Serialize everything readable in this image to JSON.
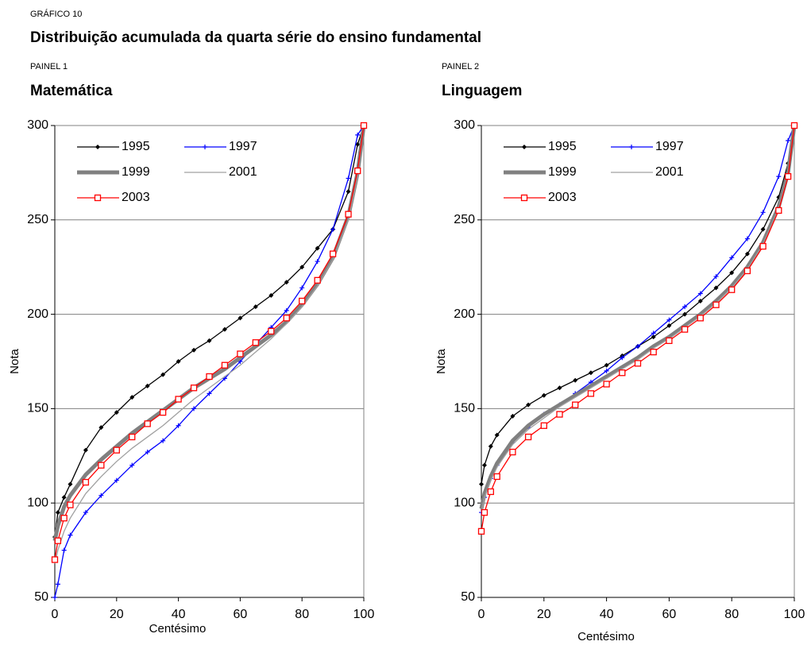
{
  "header": {
    "label": "GRÁFICO 10",
    "title": "Distribuição acumulada da quarta série do ensino fundamental"
  },
  "chart_data": [
    {
      "type": "line",
      "panel": "PAINEL 1",
      "title": "Matemática",
      "xlabel": "Centésimo",
      "ylabel": "Nota",
      "x": [
        0,
        1,
        3,
        5,
        10,
        15,
        20,
        25,
        30,
        35,
        40,
        45,
        50,
        55,
        60,
        65,
        70,
        75,
        80,
        85,
        90,
        95,
        98,
        100
      ],
      "xlim": [
        0,
        100
      ],
      "ylim": [
        50,
        300
      ],
      "xticks": [
        0,
        20,
        40,
        60,
        80,
        100
      ],
      "yticks": [
        50,
        100,
        150,
        200,
        250,
        300
      ],
      "grid": true,
      "series": [
        {
          "name": "1995",
          "color": "#000000",
          "marker": "diamond",
          "line": "thin",
          "values": [
            82,
            95,
            103,
            110,
            128,
            140,
            148,
            156,
            162,
            168,
            175,
            181,
            186,
            192,
            198,
            204,
            210,
            217,
            225,
            235,
            245,
            265,
            290,
            300
          ]
        },
        {
          "name": "1997",
          "color": "#0000ff",
          "marker": "plus",
          "line": "thin",
          "values": [
            50,
            57,
            75,
            83,
            95,
            104,
            112,
            120,
            127,
            133,
            141,
            150,
            158,
            166,
            175,
            184,
            193,
            202,
            214,
            228,
            245,
            272,
            295,
            300
          ]
        },
        {
          "name": "1999",
          "color": "#808080",
          "marker": "none",
          "line": "thick",
          "values": [
            80,
            88,
            98,
            104,
            115,
            123,
            130,
            137,
            143,
            149,
            155,
            161,
            166,
            171,
            177,
            183,
            189,
            196,
            205,
            216,
            230,
            252,
            275,
            300
          ]
        },
        {
          "name": "2001",
          "color": "#a0a0a0",
          "marker": "none",
          "line": "thin",
          "values": [
            68,
            75,
            85,
            92,
            105,
            114,
            122,
            129,
            135,
            141,
            148,
            155,
            161,
            167,
            173,
            180,
            187,
            195,
            204,
            215,
            229,
            250,
            273,
            300
          ]
        },
        {
          "name": "2003",
          "color": "#ff0000",
          "marker": "square",
          "line": "thin",
          "values": [
            70,
            80,
            92,
            99,
            111,
            120,
            128,
            135,
            142,
            148,
            155,
            161,
            167,
            173,
            179,
            185,
            191,
            198,
            207,
            218,
            232,
            253,
            276,
            300
          ]
        }
      ]
    },
    {
      "type": "line",
      "panel": "PAINEL 2",
      "title": "Linguagem",
      "xlabel": "Centésimo",
      "ylabel": "Nota",
      "x": [
        0,
        1,
        3,
        5,
        10,
        15,
        20,
        25,
        30,
        35,
        40,
        45,
        50,
        55,
        60,
        65,
        70,
        75,
        80,
        85,
        90,
        95,
        98,
        100
      ],
      "xlim": [
        0,
        100
      ],
      "ylim": [
        50,
        300
      ],
      "xticks": [
        0,
        20,
        40,
        60,
        80,
        100
      ],
      "yticks": [
        50,
        100,
        150,
        200,
        250,
        300
      ],
      "grid": true,
      "series": [
        {
          "name": "1995",
          "color": "#000000",
          "marker": "diamond",
          "line": "thin",
          "values": [
            110,
            120,
            130,
            136,
            146,
            152,
            157,
            161,
            165,
            169,
            173,
            178,
            183,
            188,
            194,
            200,
            207,
            214,
            222,
            232,
            245,
            262,
            280,
            300
          ]
        },
        {
          "name": "1997",
          "color": "#0000ff",
          "marker": "plus",
          "line": "thin",
          "values": [
            95,
            103,
            113,
            120,
            132,
            140,
            147,
            152,
            158,
            164,
            170,
            177,
            183,
            190,
            197,
            204,
            211,
            220,
            230,
            240,
            254,
            273,
            292,
            300
          ]
        },
        {
          "name": "1999",
          "color": "#808080",
          "marker": "none",
          "line": "thick",
          "values": [
            97,
            105,
            114,
            121,
            133,
            141,
            147,
            152,
            157,
            162,
            167,
            172,
            177,
            183,
            188,
            194,
            200,
            207,
            215,
            225,
            238,
            257,
            275,
            300
          ]
        },
        {
          "name": "2001",
          "color": "#a0a0a0",
          "marker": "none",
          "line": "thin",
          "values": [
            95,
            103,
            112,
            119,
            131,
            139,
            145,
            151,
            156,
            161,
            166,
            171,
            176,
            182,
            187,
            193,
            199,
            206,
            214,
            224,
            237,
            256,
            274,
            300
          ]
        },
        {
          "name": "2003",
          "color": "#ff0000",
          "marker": "square",
          "line": "thin",
          "values": [
            85,
            95,
            106,
            114,
            127,
            135,
            141,
            147,
            152,
            158,
            163,
            169,
            174,
            180,
            186,
            192,
            198,
            205,
            213,
            223,
            236,
            255,
            273,
            300
          ]
        }
      ]
    }
  ]
}
